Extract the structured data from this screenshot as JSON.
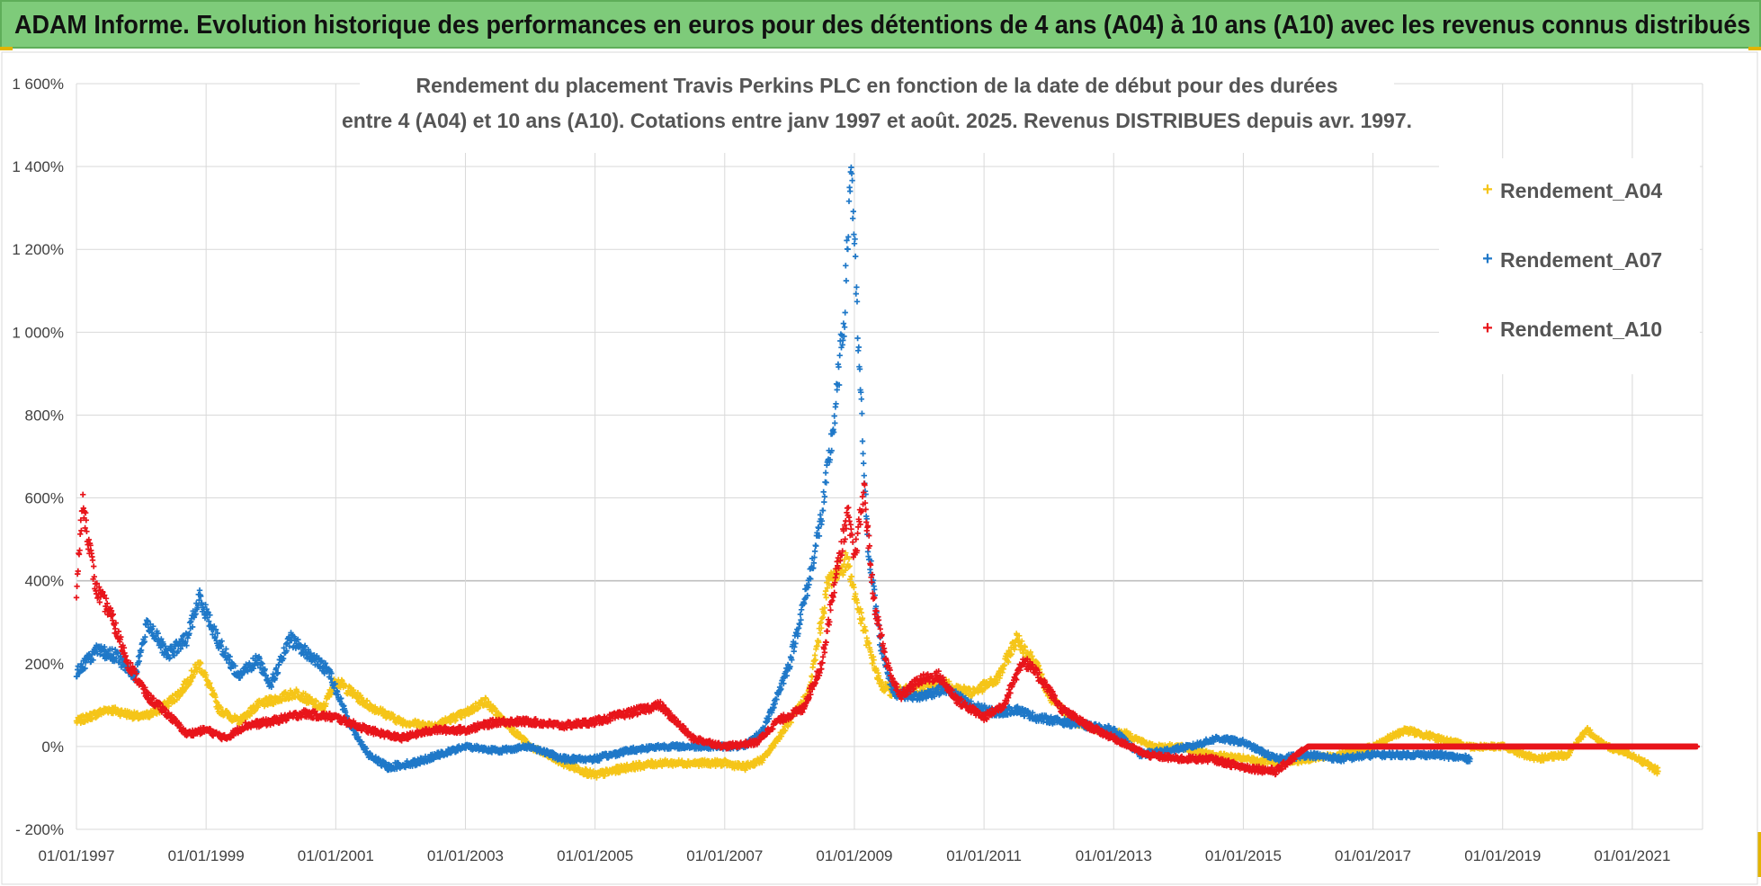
{
  "header": {
    "title": "ADAM Informe. Evolution historique des performances en euros pour des détentions de 4 ans (A04) à 10 ans (A10) avec les revenus connus distribués"
  },
  "colors": {
    "banner": "#7ecb7a",
    "A04": "#f5c518",
    "A07": "#1f78c8",
    "A10": "#e8151b",
    "grid": "#d9d9d9"
  },
  "chart_data": {
    "type": "scatter",
    "title_line1": "Rendement du placement Travis Perkins PLC en fonction de la date de début pour des durées",
    "title_line2": "entre 4 (A04) et 10 ans (A10).  Cotations entre janv 1997 et août. 2025. Revenus DISTRIBUES depuis avr. 1997.",
    "xlabel": "",
    "ylabel": "",
    "x_ticks": [
      "01/01/1997",
      "01/01/1999",
      "01/01/2001",
      "01/01/2003",
      "01/01/2005",
      "01/01/2007",
      "01/01/2009",
      "01/01/2011",
      "01/01/2013",
      "01/01/2015",
      "01/01/2017",
      "01/01/2019",
      "01/01/2021"
    ],
    "xlim": [
      "01/01/1997",
      "01/02/2022"
    ],
    "y_ticks": [
      "- 200%",
      "0%",
      "200%",
      "400%",
      "600%",
      "800%",
      "1 000%",
      "1 200%",
      "1 400%",
      "1 600%"
    ],
    "ylim": [
      -200,
      1600
    ],
    "grid": true,
    "legend_position": "top-right",
    "marker": "+",
    "series": [
      {
        "name": "Rendement_A04",
        "color": "#f5c518",
        "points": [
          [
            1997.0,
            60
          ],
          [
            1997.5,
            90
          ],
          [
            1998.0,
            70
          ],
          [
            1998.3,
            90
          ],
          [
            1998.6,
            130
          ],
          [
            1998.9,
            200
          ],
          [
            1999.2,
            90
          ],
          [
            1999.5,
            60
          ],
          [
            1999.8,
            100
          ],
          [
            2000.0,
            110
          ],
          [
            2000.4,
            130
          ],
          [
            2000.8,
            90
          ],
          [
            2001.0,
            160
          ],
          [
            2001.5,
            100
          ],
          [
            2002.0,
            60
          ],
          [
            2002.5,
            50
          ],
          [
            2003.0,
            80
          ],
          [
            2003.3,
            110
          ],
          [
            2003.6,
            60
          ],
          [
            2004.0,
            0
          ],
          [
            2004.5,
            -40
          ],
          [
            2005.0,
            -70
          ],
          [
            2005.5,
            -50
          ],
          [
            2006.0,
            -40
          ],
          [
            2006.5,
            -40
          ],
          [
            2007.0,
            -40
          ],
          [
            2007.3,
            -50
          ],
          [
            2007.6,
            -30
          ],
          [
            2008.0,
            60
          ],
          [
            2008.3,
            130
          ],
          [
            2008.6,
            400
          ],
          [
            2008.9,
            450
          ],
          [
            2009.0,
            370
          ],
          [
            2009.2,
            250
          ],
          [
            2009.4,
            150
          ],
          [
            2009.6,
            130
          ],
          [
            2010.0,
            140
          ],
          [
            2010.4,
            150
          ],
          [
            2010.8,
            130
          ],
          [
            2011.2,
            160
          ],
          [
            2011.5,
            260
          ],
          [
            2011.8,
            200
          ],
          [
            2012.0,
            120
          ],
          [
            2012.4,
            60
          ],
          [
            2012.8,
            40
          ],
          [
            2013.2,
            30
          ],
          [
            2013.6,
            0
          ],
          [
            2014.0,
            0
          ],
          [
            2014.5,
            -20
          ],
          [
            2015.0,
            -30
          ],
          [
            2015.5,
            -40
          ],
          [
            2016.0,
            -30
          ],
          [
            2016.5,
            -20
          ],
          [
            2017.0,
            0
          ],
          [
            2017.5,
            40
          ],
          [
            2018.0,
            20
          ],
          [
            2018.5,
            0
          ],
          [
            2019.0,
            0
          ],
          [
            2019.5,
            -30
          ],
          [
            2020.0,
            -20
          ],
          [
            2020.3,
            40
          ],
          [
            2020.6,
            0
          ],
          [
            2021.0,
            -20
          ],
          [
            2021.4,
            -60
          ]
        ]
      },
      {
        "name": "Rendement_A07",
        "color": "#1f78c8",
        "points": [
          [
            1997.0,
            180
          ],
          [
            1997.3,
            230
          ],
          [
            1997.6,
            220
          ],
          [
            1997.9,
            170
          ],
          [
            1998.1,
            300
          ],
          [
            1998.4,
            220
          ],
          [
            1998.7,
            260
          ],
          [
            1998.9,
            360
          ],
          [
            1999.2,
            250
          ],
          [
            1999.5,
            170
          ],
          [
            1999.8,
            210
          ],
          [
            2000.0,
            150
          ],
          [
            2000.3,
            260
          ],
          [
            2000.6,
            220
          ],
          [
            2000.9,
            180
          ],
          [
            2001.2,
            60
          ],
          [
            2001.5,
            -20
          ],
          [
            2001.8,
            -50
          ],
          [
            2002.2,
            -40
          ],
          [
            2002.6,
            -20
          ],
          [
            2003.0,
            0
          ],
          [
            2003.5,
            -10
          ],
          [
            2004.0,
            0
          ],
          [
            2004.5,
            -30
          ],
          [
            2005.0,
            -30
          ],
          [
            2005.5,
            -10
          ],
          [
            2006.0,
            0
          ],
          [
            2006.5,
            0
          ],
          [
            2007.0,
            0
          ],
          [
            2007.3,
            0
          ],
          [
            2007.6,
            40
          ],
          [
            2008.0,
            200
          ],
          [
            2008.3,
            400
          ],
          [
            2008.5,
            560
          ],
          [
            2008.7,
            800
          ],
          [
            2008.85,
            1050
          ],
          [
            2008.95,
            1420
          ],
          [
            2009.05,
            1000
          ],
          [
            2009.2,
            500
          ],
          [
            2009.4,
            250
          ],
          [
            2009.6,
            130
          ],
          [
            2010.0,
            120
          ],
          [
            2010.4,
            140
          ],
          [
            2010.8,
            100
          ],
          [
            2011.2,
            80
          ],
          [
            2011.5,
            90
          ],
          [
            2011.8,
            70
          ],
          [
            2012.2,
            60
          ],
          [
            2012.6,
            50
          ],
          [
            2013.0,
            40
          ],
          [
            2013.4,
            -20
          ],
          [
            2013.8,
            -10
          ],
          [
            2014.2,
            0
          ],
          [
            2014.6,
            20
          ],
          [
            2015.0,
            10
          ],
          [
            2015.5,
            -30
          ],
          [
            2016.0,
            -20
          ],
          [
            2016.5,
            -30
          ],
          [
            2017.0,
            -20
          ],
          [
            2017.5,
            -20
          ],
          [
            2018.0,
            -20
          ],
          [
            2018.5,
            -30
          ]
        ]
      },
      {
        "name": "Rendement_A10",
        "color": "#e8151b",
        "points": [
          [
            1997.0,
            380
          ],
          [
            1997.1,
            590
          ],
          [
            1997.3,
            380
          ],
          [
            1997.5,
            330
          ],
          [
            1997.8,
            200
          ],
          [
            1998.1,
            120
          ],
          [
            1998.4,
            80
          ],
          [
            1998.7,
            30
          ],
          [
            1999.0,
            40
          ],
          [
            1999.3,
            20
          ],
          [
            1999.6,
            50
          ],
          [
            2000.0,
            60
          ],
          [
            2000.5,
            80
          ],
          [
            2001.0,
            70
          ],
          [
            2001.5,
            40
          ],
          [
            2002.0,
            20
          ],
          [
            2002.5,
            40
          ],
          [
            2003.0,
            40
          ],
          [
            2003.5,
            60
          ],
          [
            2004.0,
            60
          ],
          [
            2004.5,
            50
          ],
          [
            2005.0,
            60
          ],
          [
            2005.5,
            80
          ],
          [
            2006.0,
            100
          ],
          [
            2006.5,
            20
          ],
          [
            2007.0,
            0
          ],
          [
            2007.5,
            10
          ],
          [
            2007.8,
            60
          ],
          [
            2008.2,
            90
          ],
          [
            2008.5,
            200
          ],
          [
            2008.7,
            400
          ],
          [
            2008.9,
            560
          ],
          [
            2009.0,
            450
          ],
          [
            2009.15,
            620
          ],
          [
            2009.3,
            350
          ],
          [
            2009.5,
            200
          ],
          [
            2009.7,
            120
          ],
          [
            2010.0,
            160
          ],
          [
            2010.3,
            170
          ],
          [
            2010.6,
            110
          ],
          [
            2011.0,
            70
          ],
          [
            2011.3,
            100
          ],
          [
            2011.6,
            210
          ],
          [
            2011.9,
            160
          ],
          [
            2012.2,
            90
          ],
          [
            2012.6,
            50
          ],
          [
            2013.0,
            20
          ],
          [
            2013.5,
            -20
          ],
          [
            2014.0,
            -30
          ],
          [
            2014.5,
            -30
          ],
          [
            2015.0,
            -50
          ],
          [
            2015.5,
            -60
          ],
          [
            2016.0,
            0
          ],
          [
            2017.0,
            0
          ],
          [
            2018.0,
            0
          ],
          [
            2019.0,
            0
          ],
          [
            2020.0,
            0
          ],
          [
            2021.0,
            0
          ],
          [
            2022.0,
            0
          ]
        ]
      }
    ]
  }
}
